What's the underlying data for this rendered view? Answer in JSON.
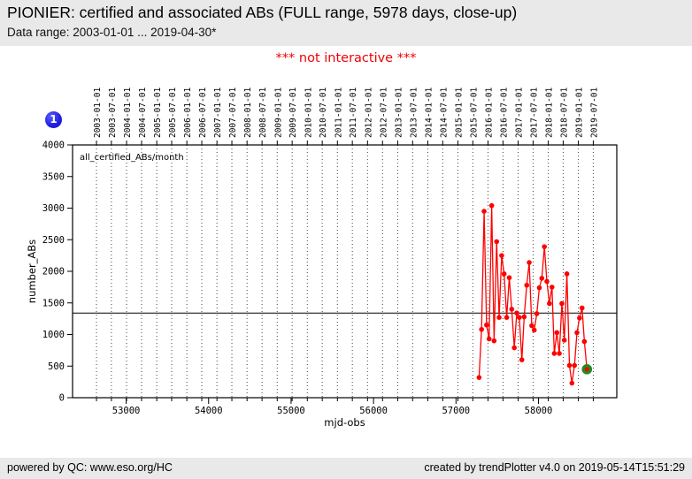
{
  "header": {
    "title": "PIONIER: certified and associated ABs (FULL range, 5978 days, close-up)",
    "subtitle": "Data range: 2003-01-01 ... 2019-04-30*"
  },
  "notice": "*** not interactive ***",
  "badge": {
    "label": "1",
    "color": "#2222e0"
  },
  "footer": {
    "left": "powered by QC: www.eso.org/HC",
    "right": "created by trendPlotter v4.0 on 2019-05-14T15:51:29"
  },
  "chart_data": {
    "type": "line",
    "series_label": "all_certified_ABs/month",
    "xlabel": "mjd-obs",
    "ylabel": "number_ABs",
    "xlim": [
      52350,
      58950
    ],
    "ylim": [
      0,
      4000
    ],
    "x_ticks": [
      53000,
      54000,
      55000,
      56000,
      57000,
      58000
    ],
    "y_ticks": [
      0,
      500,
      1000,
      1500,
      2000,
      2500,
      3000,
      3500,
      4000
    ],
    "top_axis_dates": [
      "2003-01-01",
      "2003-07-01",
      "2004-01-01",
      "2004-07-01",
      "2005-01-01",
      "2005-07-01",
      "2006-01-01",
      "2006-07-01",
      "2007-01-01",
      "2007-07-01",
      "2008-01-01",
      "2008-07-01",
      "2009-01-01",
      "2009-07-01",
      "2010-01-01",
      "2010-07-01",
      "2011-01-01",
      "2011-07-01",
      "2012-01-01",
      "2012-07-01",
      "2013-01-01",
      "2013-07-01",
      "2014-01-01",
      "2014-07-01",
      "2015-01-01",
      "2015-07-01",
      "2016-01-01",
      "2016-07-01",
      "2017-01-01",
      "2017-07-01",
      "2018-01-01",
      "2018-07-01",
      "2019-01-01",
      "2019-07-01"
    ],
    "grid": {
      "vertical_dotted_at_top_axis_dates": true,
      "horizontal": false
    },
    "legend_position": "none",
    "mean_line_value": 1340,
    "line_color": "#ff0000",
    "marker_color": "#ff0000",
    "mean_line_color": "#000000",
    "last_point_highlight_color": "#228b22",
    "points": [
      {
        "month": "2015-09",
        "mjd": 57280,
        "value": 320
      },
      {
        "month": "2015-10",
        "mjd": 57310,
        "value": 1080
      },
      {
        "month": "2015-11",
        "mjd": 57341,
        "value": 2950
      },
      {
        "month": "2015-12",
        "mjd": 57371,
        "value": 1150
      },
      {
        "month": "2016-01",
        "mjd": 57402,
        "value": 930
      },
      {
        "month": "2016-02",
        "mjd": 57433,
        "value": 3040
      },
      {
        "month": "2016-03",
        "mjd": 57462,
        "value": 900
      },
      {
        "month": "2016-04",
        "mjd": 57493,
        "value": 2470
      },
      {
        "month": "2016-05",
        "mjd": 57523,
        "value": 1270
      },
      {
        "month": "2016-06",
        "mjd": 57554,
        "value": 2250
      },
      {
        "month": "2016-07",
        "mjd": 57584,
        "value": 1960
      },
      {
        "month": "2016-08",
        "mjd": 57615,
        "value": 1270
      },
      {
        "month": "2016-09",
        "mjd": 57646,
        "value": 1900
      },
      {
        "month": "2016-10",
        "mjd": 57676,
        "value": 1400
      },
      {
        "month": "2016-11",
        "mjd": 57707,
        "value": 790
      },
      {
        "month": "2016-12",
        "mjd": 57737,
        "value": 1340
      },
      {
        "month": "2017-01",
        "mjd": 57768,
        "value": 1270
      },
      {
        "month": "2017-02",
        "mjd": 57799,
        "value": 600
      },
      {
        "month": "2017-03",
        "mjd": 57827,
        "value": 1280
      },
      {
        "month": "2017-04",
        "mjd": 57858,
        "value": 1780
      },
      {
        "month": "2017-05",
        "mjd": 57888,
        "value": 2140
      },
      {
        "month": "2017-06",
        "mjd": 57919,
        "value": 1140
      },
      {
        "month": "2017-07",
        "mjd": 57949,
        "value": 1070
      },
      {
        "month": "2017-08",
        "mjd": 57980,
        "value": 1330
      },
      {
        "month": "2017-09",
        "mjd": 58011,
        "value": 1740
      },
      {
        "month": "2017-10",
        "mjd": 58041,
        "value": 1890
      },
      {
        "month": "2017-11",
        "mjd": 58072,
        "value": 2390
      },
      {
        "month": "2017-12",
        "mjd": 58102,
        "value": 1840
      },
      {
        "month": "2018-01",
        "mjd": 58133,
        "value": 1490
      },
      {
        "month": "2018-02",
        "mjd": 58164,
        "value": 1750
      },
      {
        "month": "2018-03",
        "mjd": 58192,
        "value": 700
      },
      {
        "month": "2018-04",
        "mjd": 58223,
        "value": 1030
      },
      {
        "month": "2018-05",
        "mjd": 58253,
        "value": 700
      },
      {
        "month": "2018-06",
        "mjd": 58284,
        "value": 1490
      },
      {
        "month": "2018-07",
        "mjd": 58314,
        "value": 910
      },
      {
        "month": "2018-08",
        "mjd": 58345,
        "value": 1960
      },
      {
        "month": "2018-09",
        "mjd": 58376,
        "value": 510
      },
      {
        "month": "2018-10",
        "mjd": 58406,
        "value": 230
      },
      {
        "month": "2018-11",
        "mjd": 58437,
        "value": 510
      },
      {
        "month": "2018-12",
        "mjd": 58467,
        "value": 1030
      },
      {
        "month": "2019-01",
        "mjd": 58498,
        "value": 1260
      },
      {
        "month": "2019-02",
        "mjd": 58529,
        "value": 1420
      },
      {
        "month": "2019-03",
        "mjd": 58557,
        "value": 890
      },
      {
        "month": "2019-04",
        "mjd": 58588,
        "value": 450
      }
    ]
  }
}
